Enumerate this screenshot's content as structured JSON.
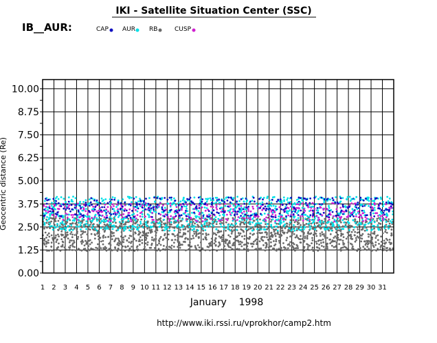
{
  "header": {
    "title": "IKI - Satellite Situation Center (SSC)",
    "series_label": "IB__AUR:"
  },
  "footer": {
    "date": "January    1998",
    "url": "http://www.iki.rssi.ru/vprokhor/camp2.htm"
  },
  "chart_data": {
    "type": "scatter",
    "ylabel": "Geocentric distance (Re)",
    "xlim": [
      1,
      32
    ],
    "ylim": [
      0,
      10.5
    ],
    "y_ticks": [
      "0.00",
      "1.25",
      "2.50",
      "3.75",
      "5.00",
      "6.25",
      "7.50",
      "8.75",
      "10.00"
    ],
    "x_ticks": [
      "1",
      "2",
      "3",
      "4",
      "5",
      "6",
      "7",
      "8",
      "9",
      "10",
      "11",
      "12",
      "13",
      "14",
      "15",
      "16",
      "17",
      "18",
      "19",
      "20",
      "21",
      "22",
      "23",
      "24",
      "25",
      "26",
      "27",
      "28",
      "29",
      "30",
      "31"
    ],
    "grid": true,
    "legend_position": "top",
    "orbits_per_day": 4,
    "series": [
      {
        "name": "CAP",
        "color": "#1010c0",
        "y_range": [
          3.0,
          4.1
        ]
      },
      {
        "name": "AUR",
        "color": "#00e0e8",
        "y_range": [
          2.3,
          4.15
        ]
      },
      {
        "name": "RB",
        "color": "#6a6a6a",
        "y_range": [
          1.2,
          3.0
        ]
      },
      {
        "name": "CUSP",
        "color": "#d020d0",
        "y_range": [
          2.8,
          3.8
        ]
      }
    ]
  }
}
